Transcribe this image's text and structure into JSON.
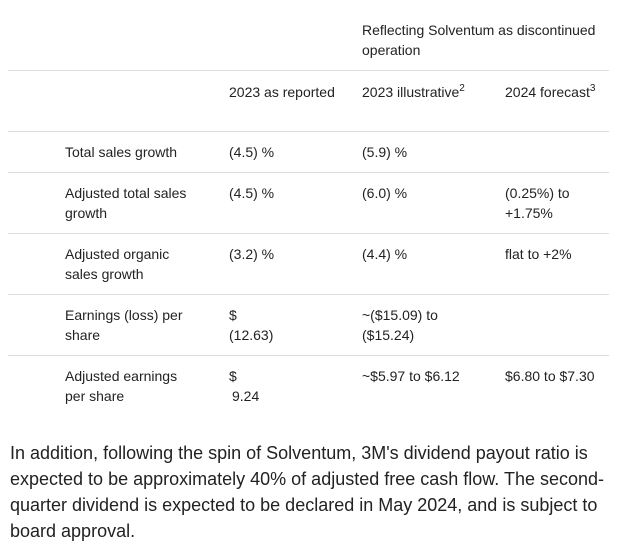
{
  "table": {
    "group_header": "Reflecting Solventum as discontinued operation",
    "columns": [
      {
        "label": "2023 as reported",
        "sup": ""
      },
      {
        "label": "2023 illustrative",
        "sup": "2"
      },
      {
        "label": "2024 forecast",
        "sup": "3"
      }
    ],
    "rows": [
      {
        "label": "Total sales growth",
        "c1": "(4.5) %",
        "c2": "(5.9) %",
        "c3": ""
      },
      {
        "label": "Adjusted total sales growth",
        "c1": "(4.5) %",
        "c2": "(6.0) %",
        "c3": "(0.25%) to +1.75%"
      },
      {
        "label": "Adjusted organic sales growth",
        "c1": "(3.2) %",
        "c2": "(4.4) %",
        "c3": "flat to +2%"
      },
      {
        "label": "Earnings (loss) per share",
        "c1a": "$",
        "c1b": "(12.63)",
        "c2": "~($15.09) to ($15.24)",
        "c3": ""
      },
      {
        "label": "Adjusted earnings per share",
        "c1a": "$",
        "c1b": "9.24",
        "c2": "~$5.97 to $6.12",
        "c3": "$6.80 to $7.30"
      }
    ]
  },
  "paragraph": "In addition, following the spin of Solventum, 3M's dividend payout ratio is expected to be approximately 40% of adjusted free cash flow. The second-quarter dividend is expected to be declared in May 2024, and is subject to board approval."
}
